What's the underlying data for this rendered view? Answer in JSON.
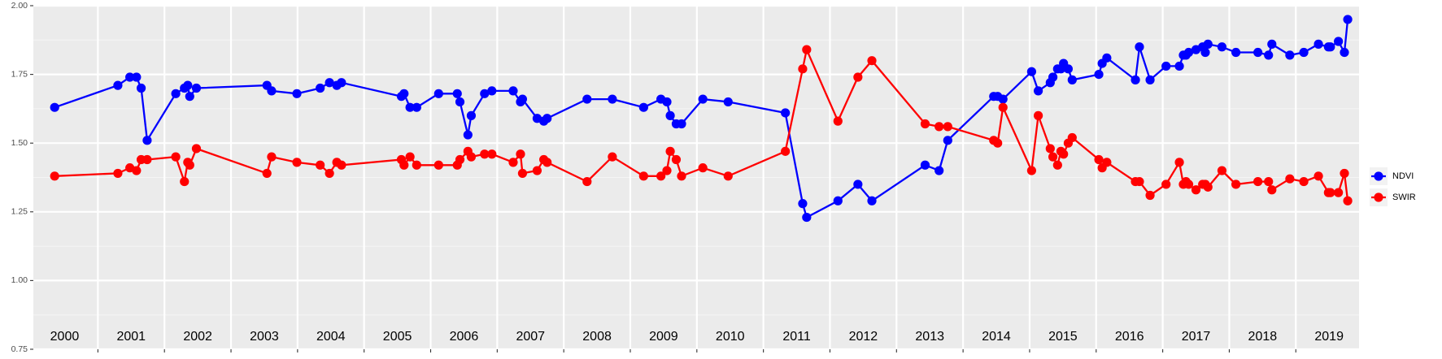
{
  "chart_data": {
    "type": "line",
    "x": [
      2000.35,
      2001.3,
      2001.48,
      2001.58,
      2001.65,
      2001.74,
      2002.17,
      2002.3,
      2002.35,
      2002.38,
      2002.48,
      2003.54,
      2003.61,
      2003.99,
      2004.34,
      2004.48,
      2004.59,
      2004.66,
      2005.56,
      2005.6,
      2005.69,
      2005.79,
      2006.12,
      2006.4,
      2006.44,
      2006.56,
      2006.61,
      2006.81,
      2006.92,
      2007.24,
      2007.35,
      2007.38,
      2007.6,
      2007.7,
      2007.75,
      2008.35,
      2008.73,
      2009.2,
      2009.46,
      2009.55,
      2009.6,
      2009.69,
      2009.77,
      2010.09,
      2010.47,
      2011.33,
      2011.59,
      2011.65,
      2012.12,
      2012.42,
      2012.63,
      2013.43,
      2013.64,
      2013.77,
      2014.46,
      2014.52,
      2014.6,
      2015.03,
      2015.13,
      2015.31,
      2015.35,
      2015.42,
      2015.47,
      2015.51,
      2015.58,
      2015.64,
      2016.04,
      2016.09,
      2016.16,
      2016.59,
      2016.65,
      2016.81,
      2017.05,
      2017.25,
      2017.31,
      2017.35,
      2017.39,
      2017.5,
      2017.6,
      2017.64,
      2017.68,
      2017.89,
      2018.1,
      2018.43,
      2018.59,
      2018.64,
      2018.91,
      2019.12,
      2019.34,
      2019.49,
      2019.52,
      2019.64,
      2019.73,
      2019.78
    ],
    "series": [
      {
        "name": "NDVI",
        "color": "#0000ff",
        "values": [
          1.63,
          1.71,
          1.74,
          1.74,
          1.7,
          1.51,
          1.68,
          1.7,
          1.71,
          1.67,
          1.7,
          1.71,
          1.69,
          1.68,
          1.7,
          1.72,
          1.71,
          1.72,
          1.67,
          1.68,
          1.63,
          1.63,
          1.68,
          1.68,
          1.65,
          1.53,
          1.6,
          1.68,
          1.69,
          1.69,
          1.65,
          1.66,
          1.59,
          1.58,
          1.59,
          1.66,
          1.66,
          1.63,
          1.66,
          1.65,
          1.6,
          1.57,
          1.57,
          1.66,
          1.65,
          1.61,
          1.28,
          1.23,
          1.29,
          1.35,
          1.29,
          1.42,
          1.4,
          1.51,
          1.67,
          1.67,
          1.66,
          1.76,
          1.69,
          1.72,
          1.74,
          1.77,
          1.77,
          1.79,
          1.77,
          1.73,
          1.75,
          1.79,
          1.81,
          1.73,
          1.85,
          1.73,
          1.78,
          1.78,
          1.82,
          1.82,
          1.83,
          1.84,
          1.85,
          1.83,
          1.86,
          1.85,
          1.83,
          1.83,
          1.82,
          1.86,
          1.82,
          1.83,
          1.86,
          1.85,
          1.85,
          1.87,
          1.83,
          1.95
        ]
      },
      {
        "name": "SWIR",
        "color": "#ff0000",
        "values": [
          1.38,
          1.39,
          1.41,
          1.4,
          1.44,
          1.44,
          1.45,
          1.36,
          1.43,
          1.42,
          1.48,
          1.39,
          1.45,
          1.43,
          1.42,
          1.39,
          1.43,
          1.42,
          1.44,
          1.42,
          1.45,
          1.42,
          1.42,
          1.42,
          1.44,
          1.47,
          1.45,
          1.46,
          1.46,
          1.43,
          1.46,
          1.39,
          1.4,
          1.44,
          1.43,
          1.36,
          1.45,
          1.38,
          1.38,
          1.4,
          1.47,
          1.44,
          1.38,
          1.41,
          1.38,
          1.47,
          1.77,
          1.84,
          1.58,
          1.74,
          1.8,
          1.57,
          1.56,
          1.56,
          1.51,
          1.5,
          1.63,
          1.4,
          1.6,
          1.48,
          1.45,
          1.42,
          1.47,
          1.46,
          1.5,
          1.52,
          1.44,
          1.41,
          1.43,
          1.36,
          1.36,
          1.31,
          1.35,
          1.43,
          1.35,
          1.36,
          1.35,
          1.33,
          1.35,
          1.35,
          1.34,
          1.4,
          1.35,
          1.36,
          1.36,
          1.33,
          1.37,
          1.36,
          1.38,
          1.32,
          1.32,
          1.32,
          1.39,
          1.29
        ]
      }
    ],
    "xlim": [
      2000.03,
      2019.95
    ],
    "xticks": [
      {
        "value": 2000.5,
        "label": "2000"
      },
      {
        "value": 2001.5,
        "label": "2001"
      },
      {
        "value": 2002.5,
        "label": "2002"
      },
      {
        "value": 2003.5,
        "label": "2003"
      },
      {
        "value": 2004.5,
        "label": "2004"
      },
      {
        "value": 2005.5,
        "label": "2005"
      },
      {
        "value": 2006.5,
        "label": "2006"
      },
      {
        "value": 2007.5,
        "label": "2007"
      },
      {
        "value": 2008.5,
        "label": "2008"
      },
      {
        "value": 2009.5,
        "label": "2009"
      },
      {
        "value": 2010.5,
        "label": "2010"
      },
      {
        "value": 2011.5,
        "label": "2011"
      },
      {
        "value": 2012.5,
        "label": "2012"
      },
      {
        "value": 2013.5,
        "label": "2013"
      },
      {
        "value": 2014.5,
        "label": "2014"
      },
      {
        "value": 2015.5,
        "label": "2015"
      },
      {
        "value": 2016.5,
        "label": "2016"
      },
      {
        "value": 2017.5,
        "label": "2017"
      },
      {
        "value": 2018.5,
        "label": "2018"
      },
      {
        "value": 2019.5,
        "label": "2019"
      }
    ],
    "xgrid": [
      2001,
      2002,
      2003,
      2004,
      2005,
      2006,
      2007,
      2008,
      2009,
      2010,
      2011,
      2012,
      2013,
      2014,
      2015,
      2016,
      2017,
      2018,
      2019
    ],
    "ylim": [
      0.75,
      2.0
    ],
    "yticks": [
      {
        "value": 0.75,
        "label": "0.75"
      },
      {
        "value": 1,
        "label": "1.00"
      },
      {
        "value": 1.25,
        "label": "1.25"
      },
      {
        "value": 1.5,
        "label": "1.50"
      },
      {
        "value": 1.75,
        "label": "1.75"
      },
      {
        "value": 2,
        "label": "2.00"
      }
    ],
    "grid": true,
    "legend": "right"
  }
}
